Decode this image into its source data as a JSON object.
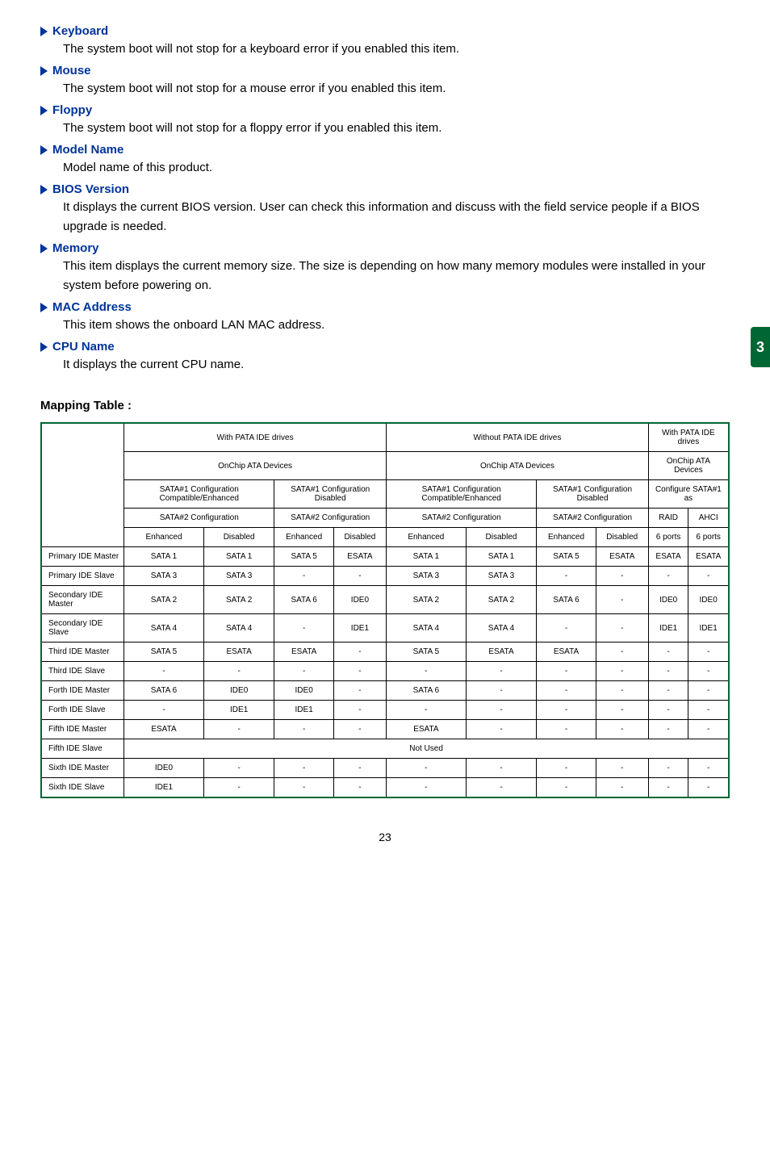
{
  "sideTab": "3",
  "sections": [
    {
      "heading": "Keyboard",
      "text": "The system boot will not stop for a keyboard error if you enabled this item."
    },
    {
      "heading": "Mouse",
      "text": "The system boot will not stop for a mouse error if you enabled this item."
    },
    {
      "heading": "Floppy",
      "text": "The system boot will not stop for a floppy error if you enabled this item."
    },
    {
      "heading": "Model Name",
      "text": "Model name of this product."
    },
    {
      "heading": "BIOS Version",
      "text": "It displays the current BIOS version. User can check this information and discuss with the field service people if a BIOS upgrade is needed."
    },
    {
      "heading": "Memory",
      "text": "This item displays the current memory size. The size is depending on how many memory modules were installed in your system before powering on."
    },
    {
      "heading": "MAC Address",
      "text": "This item shows the onboard LAN MAC address."
    },
    {
      "heading": "CPU Name",
      "text": "It displays the current CPU name."
    }
  ],
  "mappingTitle": "Mapping Table :",
  "table": {
    "hdr": {
      "withPata": "With PATA IDE drives",
      "withoutPata": "Without PATA IDE drives",
      "withPataShort": "With PATA IDE drives",
      "onchip": "OnChip ATA Devices",
      "onchipShort": "OnChip ATA Devices",
      "s1ce": "SATA#1 Configuration Compatible/Enhanced",
      "s1d": "SATA#1 Configuration Disabled",
      "cfg": "Configure SATA#1 as",
      "s2c": "SATA#2 Configuration",
      "raid": "RAID",
      "ahci": "AHCI",
      "enh": "Enhanced",
      "dis": "Disabled",
      "p6": "6 ports"
    },
    "rows": [
      {
        "label": "Primary IDE Master",
        "c": [
          "SATA 1",
          "SATA 1",
          "SATA 5",
          "ESATA",
          "SATA 1",
          "SATA 1",
          "SATA 5",
          "ESATA",
          "ESATA",
          "ESATA"
        ]
      },
      {
        "label": "Primary IDE Slave",
        "c": [
          "SATA 3",
          "SATA 3",
          "-",
          "-",
          "SATA 3",
          "SATA 3",
          "-",
          "-",
          "-",
          "-"
        ]
      },
      {
        "label": "Secondary IDE Master",
        "c": [
          "SATA 2",
          "SATA 2",
          "SATA 6",
          "IDE0",
          "SATA 2",
          "SATA 2",
          "SATA 6",
          "-",
          "IDE0",
          "IDE0"
        ]
      },
      {
        "label": "Secondary IDE Slave",
        "c": [
          "SATA 4",
          "SATA 4",
          "-",
          "IDE1",
          "SATA 4",
          "SATA 4",
          "-",
          "-",
          "IDE1",
          "IDE1"
        ]
      },
      {
        "label": "Third IDE Master",
        "c": [
          "SATA 5",
          "ESATA",
          "ESATA",
          "-",
          "SATA 5",
          "ESATA",
          "ESATA",
          "-",
          "-",
          "-"
        ]
      },
      {
        "label": "Third IDE Slave",
        "c": [
          "-",
          "-",
          "-",
          "-",
          "-",
          "-",
          "-",
          "-",
          "-",
          "-"
        ]
      },
      {
        "label": "Forth IDE Master",
        "c": [
          "SATA 6",
          "IDE0",
          "IDE0",
          "-",
          "SATA 6",
          "-",
          "-",
          "-",
          "-",
          "-"
        ]
      },
      {
        "label": "Forth IDE Slave",
        "c": [
          "-",
          "IDE1",
          "IDE1",
          "-",
          "-",
          "-",
          "-",
          "-",
          "-",
          "-"
        ]
      },
      {
        "label": "Fifth IDE Master",
        "c": [
          "ESATA",
          "-",
          "-",
          "-",
          "ESATA",
          "-",
          "-",
          "-",
          "-",
          "-"
        ]
      }
    ],
    "fifthSlave": {
      "label": "Fifth IDE Slave",
      "span": "Not  Used"
    },
    "tail": [
      {
        "label": "Sixth IDE Master",
        "c": [
          "IDE0",
          "-",
          "-",
          "-",
          "-",
          "-",
          "-",
          "-",
          "-",
          "-"
        ]
      },
      {
        "label": "Sixth IDE Slave",
        "c": [
          "IDE1",
          "-",
          "-",
          "-",
          "-",
          "-",
          "-",
          "-",
          "-",
          "-"
        ]
      }
    ]
  },
  "pageNumber": "23"
}
